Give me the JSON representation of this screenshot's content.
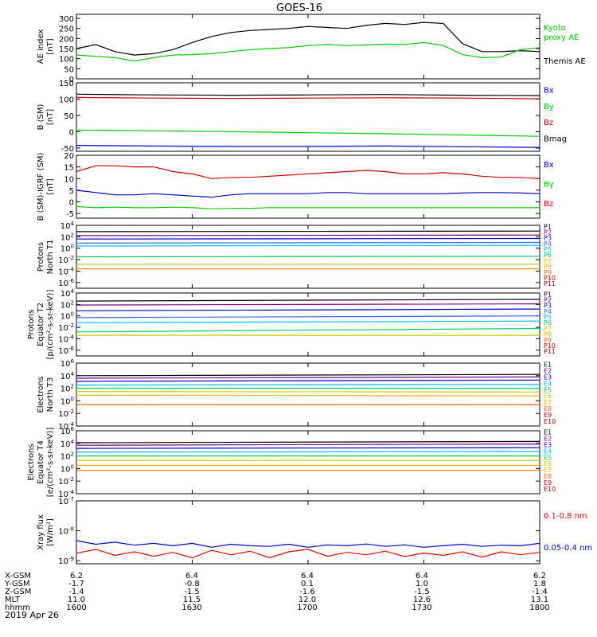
{
  "title": "GOES-16",
  "date_label": "2019 Apr 26",
  "time_axis": {
    "start": "1600",
    "end": "1800",
    "ticks": [
      "1600",
      "1630",
      "1700",
      "1730",
      "1800"
    ]
  },
  "ephemeris": [
    {
      "label": "X-GSM",
      "values": [
        "6.2",
        "6.4",
        "6.4",
        "6.4",
        "6.2"
      ]
    },
    {
      "label": "Y-GSM",
      "values": [
        "-1.7",
        "-0.8",
        "0.1",
        "1.0",
        "1.8"
      ]
    },
    {
      "label": "Z-GSM",
      "values": [
        "-1.4",
        "-1.5",
        "-1.6",
        "-1.5",
        "-1.4"
      ]
    },
    {
      "label": "MLT",
      "values": [
        "11.0",
        "11.5",
        "12.0",
        "12.6",
        "13.1"
      ]
    },
    {
      "label": "hhmm",
      "values": [
        "1600",
        "1630",
        "1700",
        "1730",
        "1800"
      ]
    }
  ],
  "chart_data": [
    {
      "type": "line",
      "id": "ae",
      "ylabel": [
        "AE index",
        "[nT]"
      ],
      "ylim": [
        0,
        320
      ],
      "scale": "linear",
      "ticks": [
        "0",
        "50",
        "100",
        "150",
        "200",
        "250",
        "300"
      ],
      "x": [
        1600,
        1605,
        1610,
        1615,
        1620,
        1625,
        1630,
        1635,
        1640,
        1645,
        1650,
        1655,
        1700,
        1705,
        1710,
        1715,
        1720,
        1725,
        1730,
        1735,
        1740,
        1745,
        1750,
        1755,
        1800
      ],
      "series": [
        {
          "name": "Themis AE",
          "color": "#000000",
          "values": [
            150,
            170,
            135,
            118,
            125,
            145,
            180,
            210,
            230,
            240,
            245,
            250,
            260,
            255,
            250,
            265,
            275,
            270,
            280,
            275,
            175,
            135,
            135,
            140,
            135
          ]
        },
        {
          "name": "Kyoto proxy AE",
          "color": "#00cc00",
          "values": [
            118,
            112,
            105,
            88,
            105,
            118,
            120,
            125,
            135,
            145,
            150,
            155,
            165,
            170,
            165,
            168,
            172,
            170,
            180,
            165,
            120,
            105,
            108,
            145,
            155
          ]
        }
      ],
      "legend": [
        {
          "text": "Kyoto",
          "color": "#00cc00"
        },
        {
          "text": "proxy AE",
          "color": "#00cc00"
        },
        {
          "text": "Themis AE",
          "color": "#000000"
        }
      ]
    },
    {
      "type": "line",
      "id": "bsm",
      "ylabel": [
        "B (SM)",
        "[nT]"
      ],
      "ylim": [
        -60,
        150
      ],
      "scale": "linear",
      "ticks": [
        "-50",
        "0",
        "50",
        "100",
        "150"
      ],
      "x": [
        1600,
        1620,
        1640,
        1700,
        1720,
        1740,
        1800
      ],
      "series": [
        {
          "name": "Bx",
          "color": "#0000cc",
          "values": [
            -42,
            -44,
            -45,
            -45,
            -44,
            -46,
            -48
          ]
        },
        {
          "name": "By",
          "color": "#00cc00",
          "values": [
            5,
            3,
            0,
            -3,
            -6,
            -10,
            -14
          ]
        },
        {
          "name": "Bz",
          "color": "#cc0000",
          "values": [
            105,
            103,
            102,
            103,
            104,
            103,
            101
          ]
        },
        {
          "name": "Bmag",
          "color": "#000000",
          "values": [
            115,
            113,
            112,
            113,
            114,
            112,
            111
          ]
        }
      ],
      "legend": [
        {
          "text": "Bx",
          "color": "#0000cc"
        },
        {
          "text": "By",
          "color": "#00cc00"
        },
        {
          "text": "Bz",
          "color": "#cc0000"
        },
        {
          "text": "Bmag",
          "color": "#000000"
        }
      ]
    },
    {
      "type": "line",
      "id": "bigrf",
      "ylabel": [
        "B (SM)-IGRF (SM)",
        "[nT]"
      ],
      "ylim": [
        -7,
        20
      ],
      "scale": "linear",
      "ticks": [
        "-5",
        "0",
        "5",
        "10",
        "15",
        "20"
      ],
      "x": [
        1600,
        1605,
        1610,
        1615,
        1620,
        1625,
        1630,
        1635,
        1640,
        1645,
        1650,
        1655,
        1700,
        1705,
        1710,
        1715,
        1720,
        1725,
        1730,
        1735,
        1740,
        1745,
        1750,
        1755,
        1800
      ],
      "series": [
        {
          "name": "Bx",
          "color": "#0000cc",
          "values": [
            5,
            4,
            3,
            3,
            3.5,
            3,
            2.5,
            2,
            3,
            3.5,
            3.5,
            3.5,
            3.5,
            4,
            4,
            3.5,
            3.5,
            3.5,
            3.5,
            3.5,
            3.8,
            4,
            4,
            3.8,
            3.5
          ]
        },
        {
          "name": "By",
          "color": "#00cc00",
          "values": [
            -2,
            -2.5,
            -2.3,
            -2.5,
            -2.5,
            -2.3,
            -2.5,
            -3,
            -2.8,
            -2.8,
            -2.5,
            -2.5,
            -2.5,
            -2.5,
            -2.5,
            -2.5,
            -2.5,
            -2.5,
            -2.5,
            -2.5,
            -2.5,
            -2.5,
            -2.5,
            -2.5,
            -2.5
          ]
        },
        {
          "name": "Bz",
          "color": "#cc0000",
          "values": [
            13,
            15.5,
            15.5,
            15,
            15,
            13,
            12,
            10,
            10.5,
            10.5,
            11,
            11.5,
            12,
            12.5,
            13,
            13.5,
            13,
            12,
            12,
            12.5,
            12,
            11,
            10.5,
            10.5,
            10
          ]
        }
      ],
      "legend": [
        {
          "text": "Bx",
          "color": "#0000cc"
        },
        {
          "text": "By",
          "color": "#00cc00"
        },
        {
          "text": "Bz",
          "color": "#cc0000"
        }
      ]
    },
    {
      "type": "line",
      "id": "pt1",
      "ylabel": [
        "Protons",
        "North T1"
      ],
      "ylim": [
        -7,
        4
      ],
      "scale": "log10",
      "ticks": [
        "10^4",
        "10^2",
        "10^0",
        "10^-2",
        "10^-4",
        "10^-6"
      ],
      "x": [
        1600,
        1800
      ],
      "series": [
        {
          "name": "P1",
          "color": "#000000",
          "values": [
            2.9,
            3.0
          ]
        },
        {
          "name": "P2",
          "color": "#800080",
          "values": [
            2.2,
            2.3
          ]
        },
        {
          "name": "P3",
          "color": "#0000cc",
          "values": [
            1.6,
            1.7
          ]
        },
        {
          "name": "P4",
          "color": "#3366ff",
          "values": [
            0.9,
            1.0
          ]
        },
        {
          "name": "P5",
          "color": "#00bbff",
          "values": [
            0.4,
            0.5
          ]
        },
        {
          "name": "P6",
          "color": "#00cc66",
          "values": [
            -1.5,
            -1.4
          ]
        },
        {
          "name": "P7",
          "color": "#cccc00",
          "values": [
            -2.8,
            -2.8
          ]
        },
        {
          "name": "P8",
          "color": "#ff9900",
          "values": [
            -3.6,
            -3.6
          ]
        }
      ],
      "legend": [
        {
          "text": "P1",
          "color": "#000000"
        },
        {
          "text": "P2",
          "color": "#800080"
        },
        {
          "text": "P3",
          "color": "#0000cc"
        },
        {
          "text": "P4",
          "color": "#3366ff"
        },
        {
          "text": "P5",
          "color": "#00bbff"
        },
        {
          "text": "P6",
          "color": "#00cc66"
        },
        {
          "text": "P7",
          "color": "#cccc00"
        },
        {
          "text": "P8",
          "color": "#ffaa00"
        },
        {
          "text": "P9",
          "color": "#ff6600"
        },
        {
          "text": "P10",
          "color": "#cc0000"
        },
        {
          "text": "P11",
          "color": "#990000"
        }
      ]
    },
    {
      "type": "line",
      "id": "pt2",
      "ylabel": [
        "Protons",
        "Equator T2",
        "[p/(cm²-s-sr-keV)]"
      ],
      "ylim": [
        -7,
        4
      ],
      "scale": "log10",
      "ticks": [
        "10^4",
        "10^2",
        "10^0",
        "10^-2",
        "10^-4",
        "10^-6"
      ],
      "x": [
        1600,
        1800
      ],
      "series": [
        {
          "name": "P1",
          "color": "#000000",
          "values": [
            2.6,
            2.9
          ]
        },
        {
          "name": "P2",
          "color": "#800080",
          "values": [
            1.9,
            2.1
          ]
        },
        {
          "name": "P3",
          "color": "#0000cc",
          "values": [
            0.9,
            1.2
          ]
        },
        {
          "name": "P4",
          "color": "#3366ff",
          "values": [
            -0.3,
            0.0
          ]
        },
        {
          "name": "P5",
          "color": "#00bbff",
          "values": [
            -1.2,
            -0.9
          ]
        },
        {
          "name": "P6",
          "color": "#00cc66",
          "values": [
            -2.8,
            -2.2
          ]
        },
        {
          "name": "P7",
          "color": "#cccc00",
          "values": [
            -3.4,
            -3.4
          ]
        }
      ],
      "legend": [
        {
          "text": "P1",
          "color": "#000000"
        },
        {
          "text": "P2",
          "color": "#800080"
        },
        {
          "text": "P3",
          "color": "#0000cc"
        },
        {
          "text": "P4",
          "color": "#3366ff"
        },
        {
          "text": "P5",
          "color": "#00bbff"
        },
        {
          "text": "P6",
          "color": "#00cc66"
        },
        {
          "text": "P7",
          "color": "#cccc00"
        },
        {
          "text": "P8",
          "color": "#ffaa00"
        },
        {
          "text": "P9",
          "color": "#ff6600"
        },
        {
          "text": "P10",
          "color": "#cc0000"
        },
        {
          "text": "P11",
          "color": "#990000"
        }
      ]
    },
    {
      "type": "line",
      "id": "et3",
      "ylabel": [
        "Electrons",
        "North T3"
      ],
      "ylim": [
        -4,
        6
      ],
      "scale": "log10",
      "ticks": [
        "10^6",
        "10^4",
        "10^2",
        "10^0",
        "10^-2",
        "10^-4"
      ],
      "x": [
        1600,
        1800
      ],
      "series": [
        {
          "name": "E1",
          "color": "#000000",
          "values": [
            4.0,
            4.2
          ]
        },
        {
          "name": "E2",
          "color": "#800080",
          "values": [
            3.6,
            3.8
          ]
        },
        {
          "name": "E3",
          "color": "#0000cc",
          "values": [
            3.1,
            3.3
          ]
        },
        {
          "name": "E4",
          "color": "#00bbff",
          "values": [
            2.5,
            2.6
          ]
        },
        {
          "name": "E5",
          "color": "#00cc66",
          "values": [
            2.0,
            2.0
          ]
        },
        {
          "name": "E6",
          "color": "#cccc00",
          "values": [
            1.5,
            1.4
          ]
        },
        {
          "name": "E7",
          "color": "#ffaa00",
          "values": [
            0.9,
            0.8
          ]
        },
        {
          "name": "E8",
          "color": "#ff6600",
          "values": [
            -0.6,
            -0.6
          ]
        }
      ],
      "legend": [
        {
          "text": "E1",
          "color": "#000000"
        },
        {
          "text": "E2",
          "color": "#800080"
        },
        {
          "text": "E3",
          "color": "#0000cc"
        },
        {
          "text": "E4",
          "color": "#00bbff"
        },
        {
          "text": "E5",
          "color": "#00cc66"
        },
        {
          "text": "E6",
          "color": "#cccc00"
        },
        {
          "text": "E7",
          "color": "#ffaa00"
        },
        {
          "text": "E8",
          "color": "#ff6600"
        },
        {
          "text": "E9",
          "color": "#cc0000"
        },
        {
          "text": "E10",
          "color": "#990000"
        }
      ]
    },
    {
      "type": "line",
      "id": "et4",
      "ylabel": [
        "Electrons",
        "Equator T4",
        "[e/(cm²-s-sr-keV)]"
      ],
      "ylim": [
        -4,
        6
      ],
      "scale": "log10",
      "ticks": [
        "10^6",
        "10^4",
        "10^2",
        "10^0",
        "10^-2",
        "10^-4"
      ],
      "x": [
        1600,
        1800
      ],
      "series": [
        {
          "name": "E1",
          "color": "#000000",
          "values": [
            4.1,
            4.3
          ]
        },
        {
          "name": "E2",
          "color": "#800080",
          "values": [
            3.7,
            3.9
          ]
        },
        {
          "name": "E3",
          "color": "#0000cc",
          "values": [
            3.2,
            3.3
          ]
        },
        {
          "name": "E4",
          "color": "#00bbff",
          "values": [
            2.6,
            2.7
          ]
        },
        {
          "name": "E5",
          "color": "#00cc66",
          "values": [
            2.0,
            2.0
          ]
        },
        {
          "name": "E6",
          "color": "#cccc00",
          "values": [
            1.3,
            1.3
          ]
        },
        {
          "name": "E7",
          "color": "#ffaa00",
          "values": [
            0.5,
            0.5
          ]
        },
        {
          "name": "E8",
          "color": "#ff6600",
          "values": [
            -0.3,
            -0.3
          ]
        }
      ],
      "legend": [
        {
          "text": "E1",
          "color": "#000000"
        },
        {
          "text": "E2",
          "color": "#800080"
        },
        {
          "text": "E3",
          "color": "#0000cc"
        },
        {
          "text": "E4",
          "color": "#00bbff"
        },
        {
          "text": "E5",
          "color": "#00cc66"
        },
        {
          "text": "E6",
          "color": "#cccc00"
        },
        {
          "text": "E7",
          "color": "#ffaa00"
        },
        {
          "text": "E8",
          "color": "#ff6600"
        },
        {
          "text": "E9",
          "color": "#cc0000"
        },
        {
          "text": "E10",
          "color": "#990000"
        }
      ]
    },
    {
      "type": "line",
      "id": "xray",
      "ylabel": [
        "Xray flux",
        "[W/m²]"
      ],
      "ylim": [
        -9.1,
        -7
      ],
      "scale": "log10",
      "ticks": [
        "10^-7",
        "10^-8",
        "10^-9"
      ],
      "x": [
        1600,
        1605,
        1610,
        1615,
        1620,
        1625,
        1630,
        1635,
        1640,
        1645,
        1650,
        1655,
        1700,
        1705,
        1710,
        1715,
        1720,
        1725,
        1730,
        1735,
        1740,
        1745,
        1750,
        1755,
        1800
      ],
      "series": [
        {
          "name": "0.05-0.4 nm",
          "color": "#0000cc",
          "values": [
            -8.33,
            -8.45,
            -8.38,
            -8.48,
            -8.42,
            -8.5,
            -8.42,
            -8.55,
            -8.45,
            -8.5,
            -8.52,
            -8.45,
            -8.55,
            -8.47,
            -8.5,
            -8.44,
            -8.52,
            -8.47,
            -8.55,
            -8.5,
            -8.45,
            -8.52,
            -8.48,
            -8.5,
            -8.42
          ]
        },
        {
          "name": "0.1-0.8 nm",
          "color": "#ff0000",
          "values": [
            -8.75,
            -8.62,
            -8.82,
            -8.7,
            -8.85,
            -8.72,
            -8.9,
            -8.65,
            -8.8,
            -8.68,
            -8.9,
            -8.7,
            -8.62,
            -8.85,
            -8.72,
            -8.8,
            -8.68,
            -8.86,
            -8.74,
            -8.82,
            -8.7,
            -8.88,
            -8.7,
            -8.8,
            -8.72
          ]
        }
      ],
      "legend": [
        {
          "text": "0.1-0.8 nm",
          "color": "#ff0000"
        },
        {
          "text": "0.05-0.4 nm",
          "color": "#0000cc"
        }
      ]
    }
  ]
}
